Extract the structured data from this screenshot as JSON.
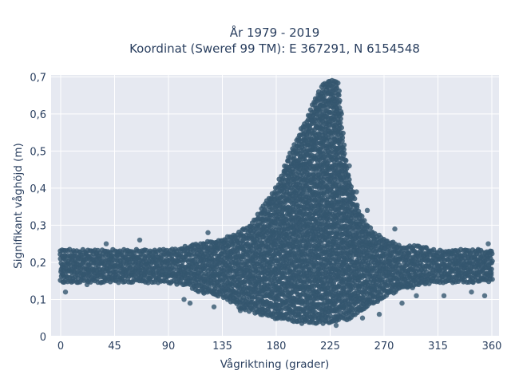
{
  "chart_data": {
    "type": "scatter",
    "title_line1": "År 1979 - 2019",
    "title_line2": "Koordinat (Sweref 99 TM): E 367291, N 6154548",
    "xlabel": "Vågriktning (grader)",
    "ylabel": "Signifikant våghöjd (m)",
    "xlim": [
      -8,
      366
    ],
    "ylim": [
      0,
      0.705
    ],
    "xticks": [
      0,
      45,
      90,
      135,
      180,
      225,
      270,
      315,
      360
    ],
    "xtick_labels": [
      "0",
      "45",
      "90",
      "135",
      "180",
      "225",
      "270",
      "315",
      "360"
    ],
    "yticks": [
      0,
      0.1,
      0.2,
      0.3,
      0.4,
      0.5,
      0.6,
      0.7
    ],
    "ytick_labels": [
      "0",
      "0,1",
      "0,2",
      "0,3",
      "0,4",
      "0,5",
      "0,6",
      "0,7"
    ],
    "grid": true,
    "marker_color": "#34566f",
    "background_color": "#e6e9f1",
    "envelope": {
      "x": [
        0,
        10,
        20,
        30,
        45,
        60,
        75,
        90,
        105,
        120,
        135,
        150,
        160,
        170,
        180,
        190,
        200,
        205,
        210,
        215,
        220,
        225,
        230,
        233,
        235,
        240,
        245,
        250,
        260,
        270,
        285,
        300,
        315,
        330,
        345,
        360
      ],
      "lower": [
        0.15,
        0.15,
        0.15,
        0.15,
        0.15,
        0.15,
        0.15,
        0.15,
        0.14,
        0.12,
        0.11,
        0.08,
        0.07,
        0.06,
        0.05,
        0.05,
        0.04,
        0.04,
        0.04,
        0.04,
        0.04,
        0.04,
        0.04,
        0.05,
        0.05,
        0.05,
        0.06,
        0.07,
        0.09,
        0.11,
        0.13,
        0.14,
        0.15,
        0.15,
        0.15,
        0.15
      ],
      "upper": [
        0.23,
        0.23,
        0.23,
        0.23,
        0.23,
        0.23,
        0.23,
        0.23,
        0.24,
        0.25,
        0.26,
        0.28,
        0.3,
        0.35,
        0.4,
        0.48,
        0.55,
        0.58,
        0.62,
        0.66,
        0.68,
        0.69,
        0.69,
        0.66,
        0.56,
        0.44,
        0.38,
        0.33,
        0.28,
        0.26,
        0.24,
        0.24,
        0.23,
        0.23,
        0.23,
        0.23
      ]
    },
    "outliers": [
      {
        "x": 4,
        "y": 0.12
      },
      {
        "x": 22,
        "y": 0.14
      },
      {
        "x": 38,
        "y": 0.25
      },
      {
        "x": 66,
        "y": 0.26
      },
      {
        "x": 103,
        "y": 0.1
      },
      {
        "x": 108,
        "y": 0.09
      },
      {
        "x": 123,
        "y": 0.28
      },
      {
        "x": 128,
        "y": 0.08
      },
      {
        "x": 150,
        "y": 0.07
      },
      {
        "x": 165,
        "y": 0.32
      },
      {
        "x": 170,
        "y": 0.34
      },
      {
        "x": 176,
        "y": 0.36
      },
      {
        "x": 196,
        "y": 0.46
      },
      {
        "x": 210,
        "y": 0.58
      },
      {
        "x": 230,
        "y": 0.03
      },
      {
        "x": 241,
        "y": 0.46
      },
      {
        "x": 247,
        "y": 0.39
      },
      {
        "x": 252,
        "y": 0.05
      },
      {
        "x": 256,
        "y": 0.34
      },
      {
        "x": 266,
        "y": 0.06
      },
      {
        "x": 279,
        "y": 0.29
      },
      {
        "x": 285,
        "y": 0.09
      },
      {
        "x": 297,
        "y": 0.11
      },
      {
        "x": 320,
        "y": 0.11
      },
      {
        "x": 343,
        "y": 0.12
      },
      {
        "x": 354,
        "y": 0.11
      },
      {
        "x": 357,
        "y": 0.25
      }
    ]
  }
}
